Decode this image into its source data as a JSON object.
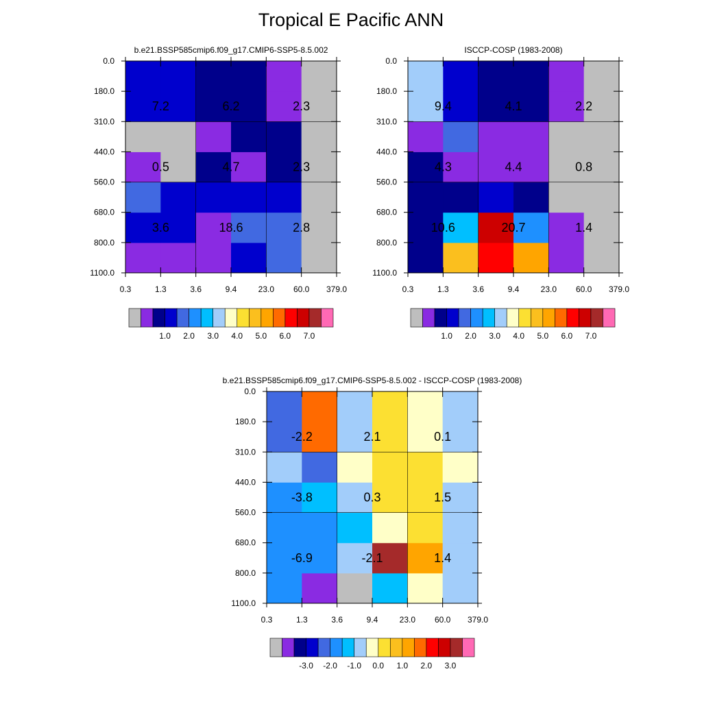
{
  "title": "Tropical E Pacific ANN",
  "chart_data": [
    {
      "type": "heatmap",
      "title": "b.e21.BSSP585cmip6.f09_g17.CMIP6-SSP5-8.5.002",
      "x_ticks": [
        "0.3",
        "1.3",
        "3.6",
        "9.4",
        "23.0",
        "60.0",
        "379.0"
      ],
      "y_ticks": [
        "0.0",
        "180.0",
        "310.0",
        "440.0",
        "560.0",
        "680.0",
        "800.0",
        "1100.0"
      ],
      "palette": [
        "#bebebe",
        "#8a2be2",
        "#00008b",
        "#0000cd",
        "#4169e1",
        "#1e90ff",
        "#00bfff",
        "#a2cdfa",
        "#ffffc8",
        "#fce032",
        "#fbbf1e",
        "#ffa500",
        "#ff6a00",
        "#ff0000",
        "#cd0000",
        "#a52a2a",
        "#ff69b4"
      ],
      "cell_colors": [
        [
          1,
          1,
          1,
          3,
          4,
          0
        ],
        [
          3,
          3,
          1,
          4,
          4,
          0
        ],
        [
          4,
          3,
          3,
          3,
          3,
          0
        ],
        [
          1,
          0,
          2,
          1,
          2,
          0
        ],
        [
          0,
          0,
          1,
          2,
          2,
          0
        ],
        [
          3,
          3,
          2,
          2,
          1,
          0
        ]
      ],
      "aggregate_values": [
        {
          "label": "7.2",
          "col": 1,
          "row": 1
        },
        {
          "label": "6.2",
          "col": 3,
          "row": 1
        },
        {
          "label": "2.3",
          "col": 5,
          "row": 1
        },
        {
          "label": "0.5",
          "col": 1,
          "row": 3
        },
        {
          "label": "4.7",
          "col": 3,
          "row": 3
        },
        {
          "label": "2.3",
          "col": 5,
          "row": 3
        },
        {
          "label": "3.6",
          "col": 1,
          "row": 5
        },
        {
          "label": "18.6",
          "col": 3,
          "row": 5
        },
        {
          "label": "2.8",
          "col": 5,
          "row": 5
        }
      ],
      "colorbar_labels": [
        "1.0",
        "2.0",
        "3.0",
        "4.0",
        "5.0",
        "6.0",
        "7.0"
      ]
    },
    {
      "type": "heatmap",
      "title": "ISCCP-COSP (1983-2008)",
      "x_ticks": [
        "0.3",
        "1.3",
        "3.6",
        "9.4",
        "23.0",
        "60.0",
        "379.0"
      ],
      "y_ticks": [
        "0.0",
        "180.0",
        "310.0",
        "440.0",
        "560.0",
        "680.0",
        "800.0",
        "1100.0"
      ],
      "palette": [
        "#bebebe",
        "#8a2be2",
        "#00008b",
        "#0000cd",
        "#4169e1",
        "#1e90ff",
        "#00bfff",
        "#a2cdfa",
        "#ffffc8",
        "#fce032",
        "#fbbf1e",
        "#ffa500",
        "#ff6a00",
        "#ff0000",
        "#cd0000",
        "#a52a2a",
        "#ff69b4"
      ],
      "cell_colors": [
        [
          2,
          10,
          13,
          11,
          1,
          0
        ],
        [
          2,
          6,
          14,
          5,
          1,
          0
        ],
        [
          2,
          2,
          3,
          2,
          0,
          0
        ],
        [
          2,
          1,
          1,
          1,
          0,
          0
        ],
        [
          1,
          4,
          1,
          1,
          0,
          0
        ],
        [
          7,
          3,
          2,
          2,
          1,
          0
        ]
      ],
      "aggregate_values": [
        {
          "label": "9.4",
          "col": 1,
          "row": 1
        },
        {
          "label": "4.1",
          "col": 3,
          "row": 1
        },
        {
          "label": "2.2",
          "col": 5,
          "row": 1
        },
        {
          "label": "4.3",
          "col": 1,
          "row": 3
        },
        {
          "label": "4.4",
          "col": 3,
          "row": 3
        },
        {
          "label": "0.8",
          "col": 5,
          "row": 3
        },
        {
          "label": "10.6",
          "col": 1,
          "row": 5
        },
        {
          "label": "20.7",
          "col": 3,
          "row": 5
        },
        {
          "label": "1.4",
          "col": 5,
          "row": 5
        }
      ],
      "colorbar_labels": [
        "1.0",
        "2.0",
        "3.0",
        "4.0",
        "5.0",
        "6.0",
        "7.0"
      ]
    },
    {
      "type": "heatmap",
      "title": "b.e21.BSSP585cmip6.f09_g17.CMIP6-SSP5-8.5.002 - ISCCP-COSP (1983-2008)",
      "x_ticks": [
        "0.3",
        "1.3",
        "3.6",
        "9.4",
        "23.0",
        "60.0",
        "379.0"
      ],
      "y_ticks": [
        "0.0",
        "180.0",
        "310.0",
        "440.0",
        "560.0",
        "680.0",
        "800.0",
        "1100.0"
      ],
      "palette": [
        "#bebebe",
        "#8a2be2",
        "#00008b",
        "#0000cd",
        "#4169e1",
        "#1e90ff",
        "#00bfff",
        "#a2cdfa",
        "#ffffc8",
        "#fce032",
        "#fbbf1e",
        "#ffa500",
        "#ff6a00",
        "#ff0000",
        "#cd0000",
        "#a52a2a",
        "#ff69b4"
      ],
      "cell_colors": [
        [
          5,
          1,
          0,
          6,
          8,
          7
        ],
        [
          5,
          5,
          7,
          15,
          11,
          7
        ],
        [
          5,
          5,
          6,
          8,
          9,
          7
        ],
        [
          5,
          6,
          7,
          9,
          9,
          7
        ],
        [
          7,
          4,
          8,
          9,
          9,
          8
        ],
        [
          4,
          12,
          7,
          9,
          8,
          7
        ]
      ],
      "aggregate_values": [
        {
          "label": "-2.2",
          "col": 1,
          "row": 4
        },
        {
          "label": "2.1",
          "col": 3,
          "row": 4
        },
        {
          "label": "0.1",
          "col": 5,
          "row": 4
        },
        {
          "label": "-3.8",
          "col": 1,
          "row": 2
        },
        {
          "label": "0.3",
          "col": 3,
          "row": 2
        },
        {
          "label": "1.5",
          "col": 5,
          "row": 2
        },
        {
          "label": "-6.9",
          "col": 1,
          "row": 0
        },
        {
          "label": "-2.1",
          "col": 3,
          "row": 0
        },
        {
          "label": "1.4",
          "col": 5,
          "row": 0
        }
      ],
      "colorbar_labels": [
        "-3.0",
        "-2.0",
        "-1.0",
        "0.0",
        "1.0",
        "2.0",
        "3.0"
      ]
    }
  ]
}
